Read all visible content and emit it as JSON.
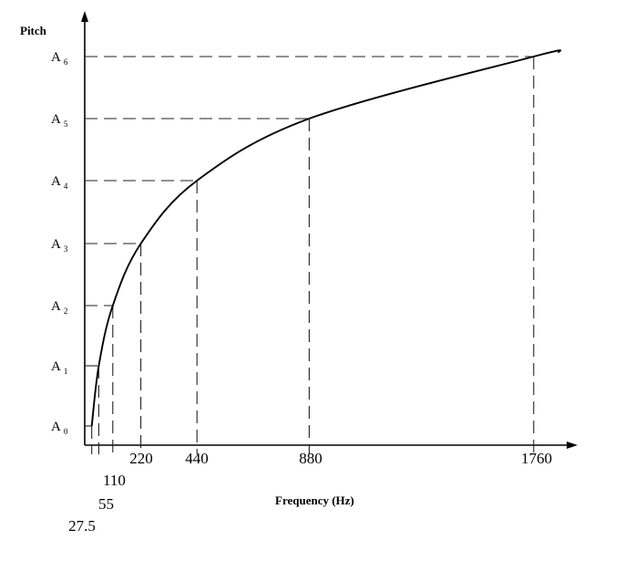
{
  "chart_data": {
    "type": "line",
    "title": "",
    "xlabel": "Frequency (Hz)",
    "ylabel": "Pitch",
    "x_scale": "linear",
    "y_labels": [
      {
        "letter": "A",
        "sub": "0"
      },
      {
        "letter": "A",
        "sub": "1"
      },
      {
        "letter": "A",
        "sub": "2"
      },
      {
        "letter": "A",
        "sub": "3"
      },
      {
        "letter": "A",
        "sub": "4"
      },
      {
        "letter": "A",
        "sub": "5"
      },
      {
        "letter": "A",
        "sub": "6"
      }
    ],
    "x_tick_labels": [
      "27.5",
      "55",
      "110",
      "220",
      "440",
      "880",
      "1760"
    ],
    "points": [
      {
        "x": 27.5,
        "pitch": "A0"
      },
      {
        "x": 55,
        "pitch": "A1"
      },
      {
        "x": 110,
        "pitch": "A2"
      },
      {
        "x": 220,
        "pitch": "A3"
      },
      {
        "x": 440,
        "pitch": "A4"
      },
      {
        "x": 880,
        "pitch": "A5"
      },
      {
        "x": 1760,
        "pitch": "A6"
      }
    ],
    "grid": false,
    "guides": "dashed lines from each point to both axes"
  }
}
